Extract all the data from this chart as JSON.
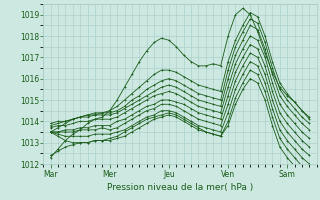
{
  "title": "",
  "xlabel": "Pression niveau de la mer( hPa )",
  "ylabel": "",
  "ylim": [
    1012,
    1019.5
  ],
  "yticks": [
    1012,
    1013,
    1014,
    1015,
    1016,
    1017,
    1018,
    1019
  ],
  "background_color": "#cce8e0",
  "grid_color": "#a8ccc7",
  "line_color": "#1a5c1a",
  "x_day_labels": [
    "Mar",
    "Mer",
    "Jeu",
    "Ven",
    "Sam"
  ],
  "x_day_positions": [
    0,
    24,
    48,
    72,
    96
  ],
  "xlim": [
    -3,
    108
  ],
  "lines": [
    [
      0,
      1012.3,
      3,
      1012.7,
      6,
      1013.1,
      9,
      1013.4,
      12,
      1013.6,
      15,
      1013.9,
      18,
      1014.1,
      21,
      1014.2,
      24,
      1014.5,
      27,
      1015.0,
      30,
      1015.6,
      33,
      1016.2,
      36,
      1016.8,
      39,
      1017.3,
      42,
      1017.7,
      45,
      1017.9,
      48,
      1017.8,
      51,
      1017.5,
      54,
      1017.1,
      57,
      1016.8,
      60,
      1016.6,
      63,
      1016.6,
      66,
      1016.7,
      69,
      1016.6,
      72,
      1018.0,
      75,
      1019.0,
      78,
      1019.3,
      81,
      1019.0,
      84,
      1018.2,
      87,
      1017.2,
      90,
      1016.3,
      93,
      1015.6,
      96,
      1015.2,
      99,
      1014.9,
      102,
      1014.5,
      105,
      1014.1
    ],
    [
      0,
      1013.5,
      3,
      1013.7,
      6,
      1013.9,
      9,
      1014.1,
      12,
      1014.2,
      15,
      1014.3,
      18,
      1014.4,
      21,
      1014.4,
      24,
      1014.5,
      27,
      1014.7,
      30,
      1015.0,
      33,
      1015.3,
      36,
      1015.6,
      39,
      1015.9,
      42,
      1016.2,
      45,
      1016.4,
      48,
      1016.4,
      51,
      1016.3,
      54,
      1016.1,
      57,
      1015.9,
      60,
      1015.7,
      63,
      1015.6,
      66,
      1015.5,
      69,
      1015.4,
      72,
      1016.8,
      75,
      1017.8,
      78,
      1018.5,
      81,
      1019.1,
      84,
      1018.9,
      87,
      1018.0,
      90,
      1016.8,
      93,
      1015.8,
      96,
      1015.3,
      99,
      1014.9,
      102,
      1014.5,
      105,
      1014.2
    ],
    [
      0,
      1013.8,
      3,
      1013.9,
      6,
      1014.0,
      9,
      1014.1,
      12,
      1014.2,
      15,
      1014.3,
      18,
      1014.3,
      21,
      1014.4,
      24,
      1014.4,
      27,
      1014.5,
      30,
      1014.7,
      33,
      1015.0,
      36,
      1015.2,
      39,
      1015.5,
      42,
      1015.7,
      45,
      1015.9,
      48,
      1016.0,
      51,
      1015.9,
      54,
      1015.7,
      57,
      1015.5,
      60,
      1015.3,
      63,
      1015.2,
      66,
      1015.1,
      69,
      1015.0,
      72,
      1016.4,
      75,
      1017.5,
      78,
      1018.2,
      81,
      1018.8,
      84,
      1018.6,
      87,
      1017.7,
      90,
      1016.5,
      93,
      1015.5,
      96,
      1015.0,
      99,
      1014.6,
      102,
      1014.2,
      105,
      1013.9
    ],
    [
      0,
      1013.9,
      3,
      1014.0,
      6,
      1014.0,
      9,
      1014.1,
      12,
      1014.2,
      15,
      1014.2,
      18,
      1014.3,
      21,
      1014.3,
      24,
      1014.3,
      27,
      1014.4,
      30,
      1014.6,
      33,
      1014.8,
      36,
      1015.0,
      39,
      1015.2,
      42,
      1015.4,
      45,
      1015.6,
      48,
      1015.7,
      51,
      1015.6,
      54,
      1015.4,
      57,
      1015.2,
      60,
      1015.0,
      63,
      1014.9,
      66,
      1014.8,
      69,
      1014.7,
      72,
      1016.0,
      75,
      1017.1,
      78,
      1017.8,
      81,
      1018.5,
      84,
      1018.3,
      87,
      1017.4,
      90,
      1016.2,
      93,
      1015.2,
      96,
      1014.7,
      99,
      1014.3,
      102,
      1013.9,
      105,
      1013.6
    ],
    [
      0,
      1013.7,
      3,
      1013.8,
      6,
      1013.8,
      9,
      1013.9,
      12,
      1014.0,
      15,
      1014.0,
      18,
      1014.1,
      21,
      1014.1,
      24,
      1014.1,
      27,
      1014.2,
      30,
      1014.4,
      33,
      1014.6,
      36,
      1014.8,
      39,
      1015.0,
      42,
      1015.2,
      45,
      1015.3,
      48,
      1015.4,
      51,
      1015.3,
      54,
      1015.1,
      57,
      1014.9,
      60,
      1014.7,
      63,
      1014.6,
      66,
      1014.5,
      69,
      1014.4,
      72,
      1015.6,
      75,
      1016.7,
      78,
      1017.4,
      81,
      1018.0,
      84,
      1017.8,
      87,
      1017.0,
      90,
      1015.8,
      93,
      1014.8,
      96,
      1014.3,
      99,
      1013.9,
      102,
      1013.5,
      105,
      1013.2
    ],
    [
      0,
      1013.5,
      3,
      1013.5,
      6,
      1013.6,
      9,
      1013.6,
      12,
      1013.7,
      15,
      1013.7,
      18,
      1013.8,
      21,
      1013.8,
      24,
      1013.8,
      27,
      1014.0,
      30,
      1014.1,
      33,
      1014.3,
      36,
      1014.5,
      39,
      1014.7,
      42,
      1014.8,
      45,
      1015.0,
      48,
      1015.0,
      51,
      1014.9,
      54,
      1014.8,
      57,
      1014.6,
      60,
      1014.4,
      63,
      1014.3,
      66,
      1014.2,
      69,
      1014.1,
      72,
      1015.2,
      75,
      1016.3,
      78,
      1017.0,
      81,
      1017.6,
      84,
      1017.4,
      87,
      1016.6,
      90,
      1015.4,
      93,
      1014.4,
      96,
      1013.9,
      99,
      1013.5,
      102,
      1013.1,
      105,
      1012.8
    ],
    [
      0,
      1013.5,
      3,
      1013.5,
      6,
      1013.5,
      9,
      1013.5,
      12,
      1013.6,
      15,
      1013.6,
      18,
      1013.6,
      21,
      1013.7,
      24,
      1013.6,
      27,
      1013.7,
      30,
      1013.9,
      33,
      1014.1,
      36,
      1014.3,
      39,
      1014.5,
      42,
      1014.6,
      45,
      1014.8,
      48,
      1014.8,
      51,
      1014.7,
      54,
      1014.5,
      57,
      1014.3,
      60,
      1014.1,
      63,
      1014.0,
      66,
      1013.9,
      69,
      1013.8,
      72,
      1014.8,
      75,
      1015.9,
      78,
      1016.6,
      81,
      1017.2,
      84,
      1017.0,
      87,
      1016.2,
      90,
      1015.0,
      93,
      1014.0,
      96,
      1013.5,
      99,
      1013.1,
      102,
      1012.7,
      105,
      1012.4
    ],
    [
      0,
      1013.5,
      3,
      1013.4,
      6,
      1013.3,
      9,
      1013.3,
      12,
      1013.3,
      15,
      1013.3,
      18,
      1013.4,
      21,
      1013.4,
      24,
      1013.4,
      27,
      1013.5,
      30,
      1013.6,
      33,
      1013.8,
      36,
      1014.0,
      39,
      1014.2,
      42,
      1014.3,
      45,
      1014.5,
      48,
      1014.5,
      51,
      1014.4,
      54,
      1014.2,
      57,
      1014.0,
      60,
      1013.8,
      63,
      1013.7,
      66,
      1013.6,
      69,
      1013.5,
      72,
      1014.4,
      75,
      1015.5,
      78,
      1016.2,
      81,
      1016.8,
      84,
      1016.6,
      87,
      1015.8,
      90,
      1014.6,
      93,
      1013.6,
      96,
      1013.1,
      99,
      1012.7,
      102,
      1012.3,
      105,
      1012.0
    ],
    [
      0,
      1013.5,
      3,
      1013.3,
      6,
      1013.1,
      9,
      1013.0,
      12,
      1013.0,
      15,
      1013.0,
      18,
      1013.1,
      21,
      1013.1,
      24,
      1013.1,
      27,
      1013.2,
      30,
      1013.3,
      33,
      1013.5,
      36,
      1013.7,
      39,
      1013.9,
      42,
      1014.1,
      45,
      1014.2,
      48,
      1014.3,
      51,
      1014.2,
      54,
      1014.0,
      57,
      1013.8,
      60,
      1013.6,
      63,
      1013.5,
      66,
      1013.4,
      69,
      1013.3,
      72,
      1014.0,
      75,
      1015.1,
      78,
      1015.8,
      81,
      1016.4,
      84,
      1016.2,
      87,
      1015.4,
      90,
      1014.2,
      93,
      1013.2,
      96,
      1012.7,
      99,
      1012.3,
      102,
      1011.9,
      105,
      1011.6
    ],
    [
      0,
      1012.4,
      3,
      1012.6,
      6,
      1012.8,
      9,
      1012.9,
      12,
      1013.0,
      15,
      1013.0,
      18,
      1013.1,
      21,
      1013.1,
      24,
      1013.2,
      27,
      1013.3,
      30,
      1013.5,
      33,
      1013.7,
      36,
      1013.9,
      39,
      1014.1,
      42,
      1014.2,
      45,
      1014.3,
      48,
      1014.4,
      51,
      1014.3,
      54,
      1014.1,
      57,
      1013.9,
      60,
      1013.7,
      63,
      1013.5,
      66,
      1013.4,
      69,
      1013.3,
      72,
      1013.8,
      75,
      1014.8,
      78,
      1015.5,
      81,
      1016.0,
      84,
      1015.8,
      87,
      1015.0,
      90,
      1013.8,
      93,
      1012.8,
      96,
      1012.3,
      99,
      1011.9,
      102,
      1011.5,
      105,
      1011.2
    ]
  ]
}
